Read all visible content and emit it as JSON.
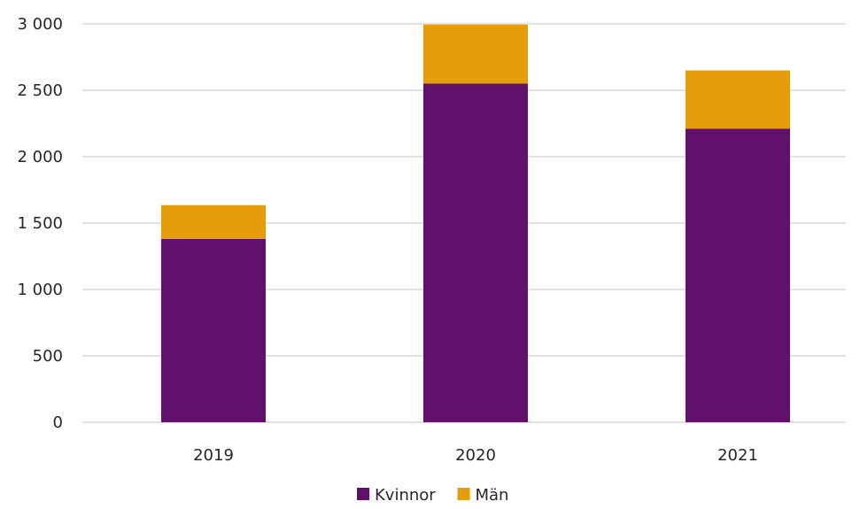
{
  "chart_data": {
    "type": "bar",
    "stacked": true,
    "categories": [
      "2019",
      "2020",
      "2021"
    ],
    "series": [
      {
        "name": "Kvinnor",
        "values": [
          1380,
          2550,
          2210
        ],
        "color": "#61116B"
      },
      {
        "name": "Män",
        "values": [
          255,
          445,
          440
        ],
        "color": "#E59E0A"
      }
    ],
    "title": "",
    "xlabel": "",
    "ylabel": "",
    "ylim": [
      0,
      3000
    ],
    "yticks": [
      {
        "value": 0,
        "label": "0"
      },
      {
        "value": 500,
        "label": "500"
      },
      {
        "value": 1000,
        "label": "1 000"
      },
      {
        "value": 1500,
        "label": "1 500"
      },
      {
        "value": 2000,
        "label": "2 000"
      },
      {
        "value": 2500,
        "label": "2 500"
      },
      {
        "value": 3000,
        "label": "3 000"
      }
    ],
    "grid": true,
    "gridColor": "#D9D9D9",
    "legend_position": "bottom"
  }
}
